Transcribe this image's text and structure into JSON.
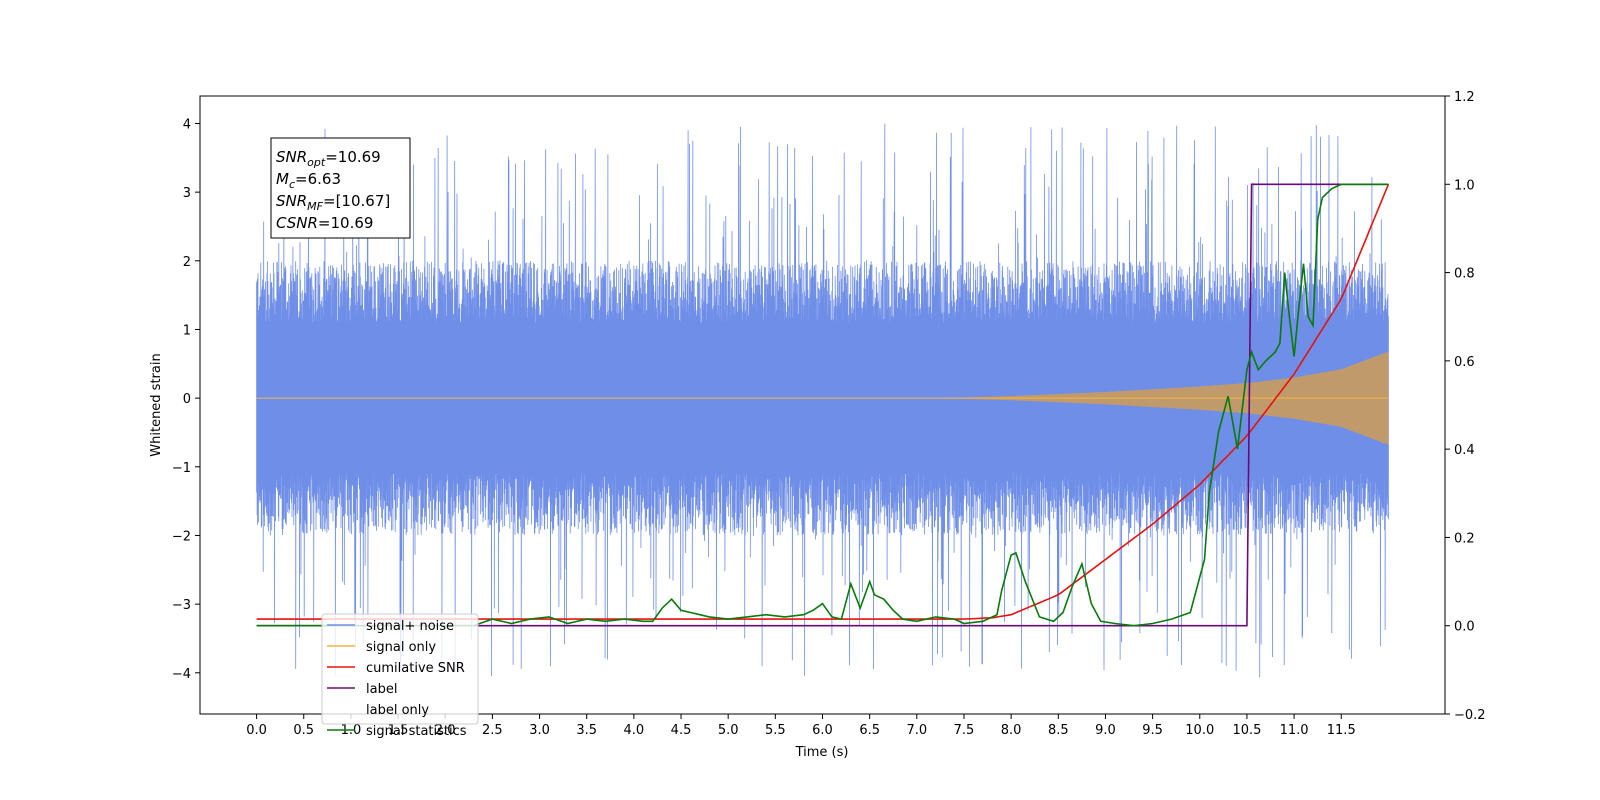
{
  "chart_data": {
    "type": "line",
    "title": "",
    "xlabel": "Time (s)",
    "ylabel": "Whitened strain",
    "xlim": [
      -0.6,
      12.6
    ],
    "ylim": [
      -4.6,
      4.4
    ],
    "y2lim": [
      -0.2,
      1.2
    ],
    "x_ticks": [
      "0.0",
      "0.5",
      "1.0",
      "1.5",
      "2.0",
      "2.5",
      "3.0",
      "3.5",
      "4.0",
      "4.5",
      "5.0",
      "5.5",
      "6.0",
      "6.5",
      "7.0",
      "7.5",
      "8.0",
      "8.5",
      "9.0",
      "9.5",
      "10.0",
      "10.5",
      "11.0",
      "11.5"
    ],
    "y_ticks": [
      "4",
      "3",
      "2",
      "1",
      "0",
      "−1",
      "−2",
      "−3",
      "−4"
    ],
    "y2_ticks": [
      "1.2",
      "1.0",
      "0.8",
      "0.6",
      "0.4",
      "0.2",
      "0.0",
      "−0.2"
    ],
    "grid": false,
    "legend_position": "lower-left",
    "annotation": {
      "lines": [
        {
          "sym": "SNR",
          "sub": "opt",
          "val": "=10.69"
        },
        {
          "sym": "M",
          "sub": "c",
          "val": "=6.63"
        },
        {
          "sym": "SNR",
          "sub": "MF",
          "val": "=[10.67]"
        },
        {
          "sym": "CSNR",
          "sub": "",
          "val": "=10.69"
        }
      ]
    },
    "colors": {
      "signal_noise": "#6f8ee8",
      "signal_only": "#f5b445",
      "cumulative_snr": "#e8120c",
      "label": "#6a0a7a",
      "signal_statistics": "#0a7a0a",
      "signal_fill": "#c19a6b"
    },
    "legend": [
      {
        "name": "signal+ noise",
        "color": "#6f8ee8"
      },
      {
        "name": "signal only",
        "color": "#f5b445"
      },
      {
        "name": "cumilative SNR",
        "color": "#e8120c"
      },
      {
        "name": "label",
        "color": "#6a0a7a"
      },
      {
        "name": "label only",
        "color": "#ffffff"
      },
      {
        "name": "signal statistics",
        "color": "#0a7a0a"
      }
    ],
    "series": [
      {
        "name": "signal+ noise",
        "axis": "left",
        "x_range": [
          0.0,
          12.0
        ],
        "envelope_upper": 2.0,
        "envelope_lower": -2.0,
        "peak_max": 4.0,
        "peak_min": -4.1
      },
      {
        "name": "signal only",
        "axis": "left",
        "x": [
          0.0,
          7.0,
          7.5,
          8.0,
          8.5,
          9.0,
          9.5,
          10.0,
          10.5,
          11.0,
          11.5,
          12.0
        ],
        "amplitude": [
          0.0,
          0.0,
          0.01,
          0.03,
          0.06,
          0.09,
          0.13,
          0.17,
          0.22,
          0.3,
          0.42,
          0.68
        ]
      },
      {
        "name": "cumilative SNR",
        "axis": "right",
        "x": [
          0.0,
          7.0,
          7.5,
          7.8,
          8.0,
          8.5,
          9.0,
          9.5,
          10.0,
          10.5,
          11.0,
          11.5,
          12.0
        ],
        "y": [
          0.015,
          0.015,
          0.015,
          0.018,
          0.025,
          0.07,
          0.15,
          0.23,
          0.32,
          0.43,
          0.57,
          0.74,
          1.0
        ]
      },
      {
        "name": "label",
        "axis": "right",
        "x": [
          0.0,
          10.5,
          10.55,
          12.0
        ],
        "y": [
          0.0,
          0.0,
          1.0,
          1.0
        ]
      },
      {
        "name": "signal statistics",
        "axis": "right",
        "x": [
          0.0,
          2.3,
          2.5,
          2.7,
          2.9,
          3.1,
          3.3,
          3.5,
          3.7,
          3.9,
          4.1,
          4.2,
          4.3,
          4.4,
          4.5,
          4.6,
          4.7,
          4.8,
          5.0,
          5.2,
          5.4,
          5.6,
          5.8,
          5.9,
          6.0,
          6.1,
          6.2,
          6.3,
          6.4,
          6.5,
          6.55,
          6.65,
          6.75,
          6.85,
          7.0,
          7.2,
          7.4,
          7.5,
          7.7,
          7.85,
          7.9,
          8.0,
          8.05,
          8.15,
          8.3,
          8.45,
          8.55,
          8.65,
          8.75,
          8.85,
          8.95,
          9.1,
          9.3,
          9.5,
          9.7,
          9.9,
          10.05,
          10.1,
          10.2,
          10.3,
          10.4,
          10.5,
          10.55,
          10.62,
          10.7,
          10.8,
          10.85,
          10.9,
          10.95,
          11.0,
          11.05,
          11.1,
          11.15,
          11.2,
          11.25,
          11.3,
          11.4,
          11.5,
          11.7,
          12.0
        ],
        "y": [
          0.0,
          0.0,
          0.015,
          0.005,
          0.015,
          0.02,
          0.005,
          0.015,
          0.01,
          0.015,
          0.01,
          0.01,
          0.04,
          0.06,
          0.035,
          0.03,
          0.025,
          0.02,
          0.015,
          0.02,
          0.025,
          0.02,
          0.025,
          0.035,
          0.05,
          0.02,
          0.015,
          0.095,
          0.04,
          0.1,
          0.07,
          0.06,
          0.035,
          0.015,
          0.01,
          0.02,
          0.015,
          0.005,
          0.01,
          0.025,
          0.08,
          0.16,
          0.165,
          0.1,
          0.02,
          0.01,
          0.03,
          0.09,
          0.14,
          0.05,
          0.01,
          0.005,
          0.0,
          0.005,
          0.015,
          0.03,
          0.15,
          0.3,
          0.44,
          0.52,
          0.4,
          0.58,
          0.62,
          0.58,
          0.6,
          0.62,
          0.64,
          0.8,
          0.7,
          0.61,
          0.72,
          0.82,
          0.7,
          0.68,
          0.92,
          0.97,
          0.99,
          1.0,
          1.0,
          1.0
        ]
      }
    ]
  }
}
